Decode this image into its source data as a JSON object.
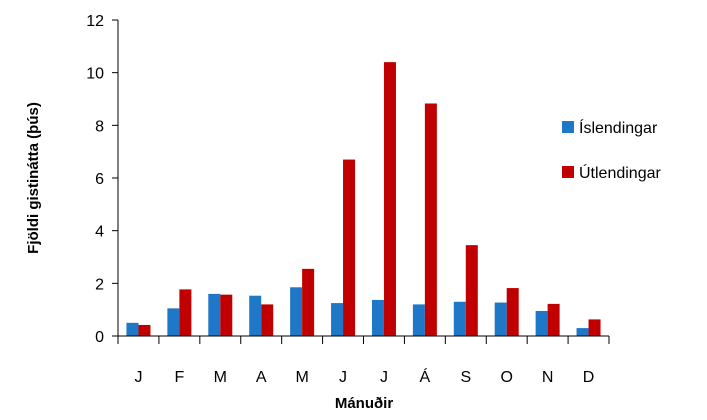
{
  "chart_data": {
    "type": "bar",
    "title": "",
    "xlabel": "Mánuðir",
    "ylabel": "Fjöldi gistinátta (þús)",
    "ylim": [
      0,
      12
    ],
    "yticks": [
      "0",
      "2",
      "4",
      "6",
      "8",
      "10",
      "12"
    ],
    "categories": [
      "J",
      "F",
      "M",
      "A",
      "M",
      "J",
      "J",
      "Á",
      "S",
      "O",
      "N",
      "D"
    ],
    "series": [
      {
        "name": "Íslendingar",
        "color": "#1F77C8",
        "values": [
          0.5,
          1.05,
          1.6,
          1.53,
          1.85,
          1.25,
          1.37,
          1.2,
          1.3,
          1.27,
          0.95,
          0.3
        ]
      },
      {
        "name": "Útlendingar",
        "color": "#C00000",
        "values": [
          0.42,
          1.77,
          1.57,
          1.2,
          2.55,
          6.7,
          10.4,
          8.83,
          3.45,
          1.82,
          1.22,
          0.63
        ]
      }
    ],
    "grid": false,
    "legend_position": "right"
  }
}
